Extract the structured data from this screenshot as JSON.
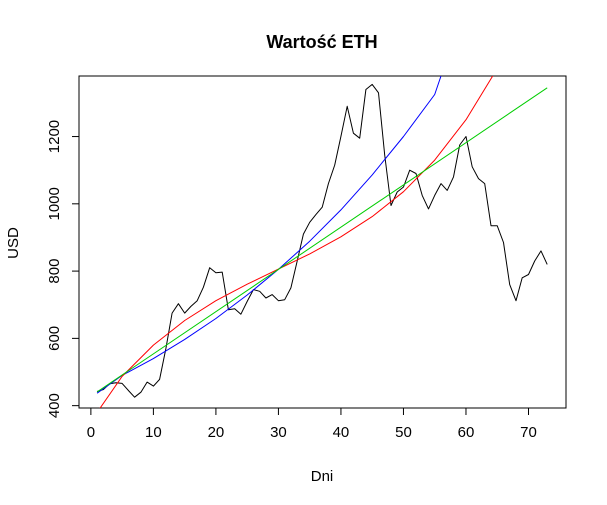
{
  "chart_data": {
    "type": "line",
    "title": "Wartość ETH",
    "xlabel": "Dni",
    "ylabel": "USD",
    "xlim": [
      -1.9,
      76
    ],
    "ylim": [
      393,
      1380
    ],
    "xticks": [
      0,
      10,
      20,
      30,
      40,
      50,
      60,
      70
    ],
    "yticks": [
      400,
      600,
      800,
      1000,
      1200
    ],
    "grid": false,
    "legend": "none",
    "series": [
      {
        "color": "#000000",
        "x": [
          1,
          2,
          3,
          4,
          5,
          6,
          7,
          8,
          9,
          10,
          11,
          12,
          13,
          14,
          15,
          16,
          17,
          18,
          19,
          20,
          21,
          22,
          23,
          24,
          25,
          26,
          27,
          28,
          29,
          30,
          31,
          32,
          33,
          34,
          35,
          36,
          37,
          38,
          39,
          40,
          41,
          42,
          43,
          44,
          45,
          46,
          47,
          48,
          49,
          50,
          51,
          52,
          53,
          54,
          55,
          56,
          57,
          58,
          59,
          60,
          61,
          62,
          63,
          64,
          65,
          66,
          67,
          68,
          69,
          70,
          71,
          72,
          73
        ],
        "values": [
          442,
          448,
          465,
          468,
          466,
          445,
          425,
          440,
          470,
          458,
          478,
          570,
          675,
          703,
          675,
          695,
          712,
          752,
          810,
          795,
          797,
          685,
          688,
          672,
          710,
          745,
          740,
          720,
          730,
          712,
          715,
          750,
          830,
          910,
          945,
          968,
          990,
          1060,
          1115,
          1200,
          1290,
          1210,
          1195,
          1340,
          1355,
          1330,
          1145,
          995,
          1035,
          1050,
          1100,
          1090,
          1025,
          985,
          1025,
          1060,
          1040,
          1080,
          1175,
          1200,
          1110,
          1075,
          1060,
          935,
          935,
          885,
          760,
          712,
          780,
          790,
          830,
          860,
          820
        ]
      },
      {
        "color": "#0000ff",
        "x": [
          1,
          5,
          10,
          15,
          20,
          25,
          30,
          35,
          40,
          45,
          50,
          55,
          56
        ],
        "values": [
          437,
          490,
          540,
          597,
          659,
          729,
          805,
          889,
          982,
          1086,
          1200,
          1325,
          1380
        ]
      },
      {
        "color": "#ff0000",
        "x": [
          1,
          5,
          10,
          15,
          20,
          25,
          30,
          35,
          40,
          45,
          50,
          55,
          60,
          65,
          67.3
        ],
        "values": [
          380,
          487,
          580,
          653,
          712,
          761,
          806,
          851,
          902,
          962,
          1036,
          1130,
          1250,
          1402,
          1475
        ]
      },
      {
        "color": "#00cd00",
        "x": [
          1,
          73
        ],
        "values": [
          441,
          1345
        ]
      }
    ]
  }
}
